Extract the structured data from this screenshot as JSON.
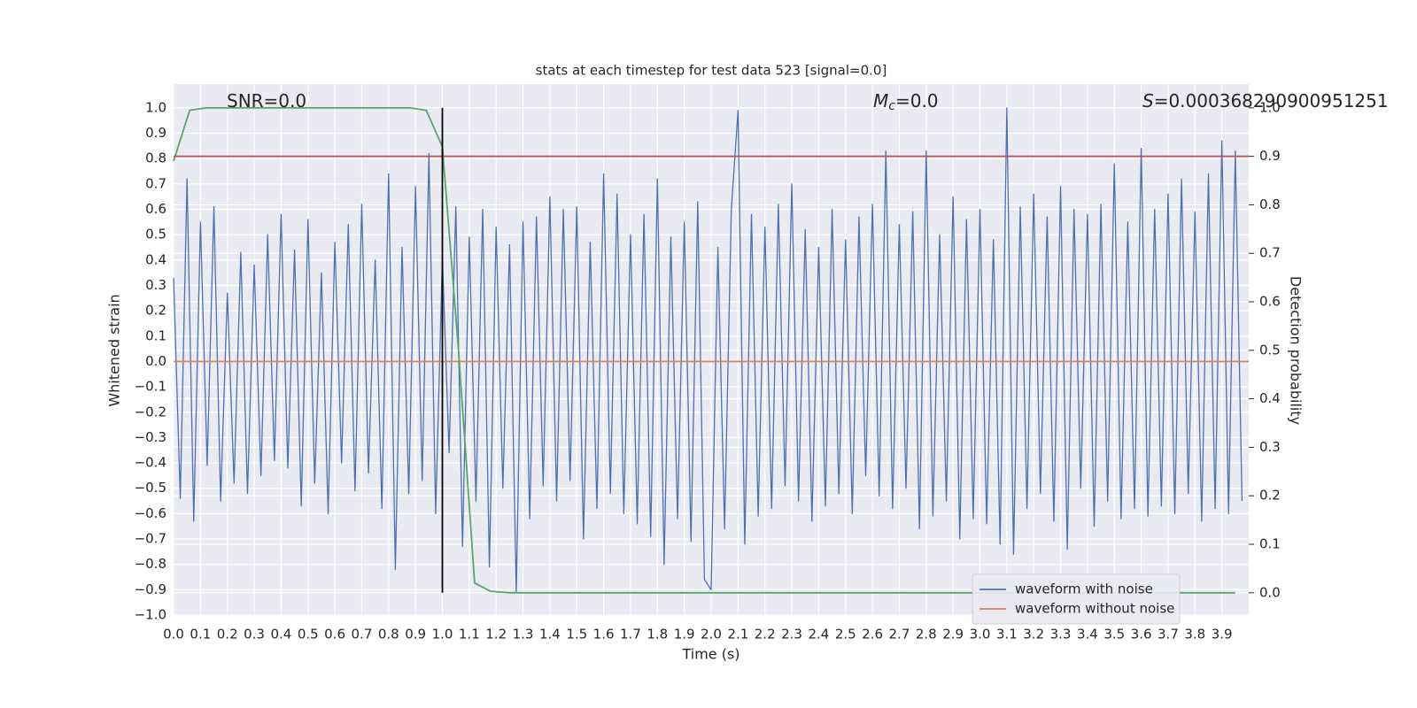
{
  "chart_data": {
    "type": "line",
    "title": "stats at each timestep for test data 523 [signal=0.0]",
    "x_label": "Time (s)",
    "y_label": "Whitened strain",
    "y2_label": "Detection probability",
    "xlim": [
      0,
      4.0
    ],
    "ylim": [
      -1.0,
      1.094
    ],
    "y2lim": [
      -0.046,
      1.049
    ],
    "xticks": [
      {
        "value": 0,
        "label": "0.0"
      },
      0.1,
      0.2,
      0.3,
      0.4,
      0.5,
      0.6,
      0.7,
      0.8,
      0.9,
      {
        "value": 1,
        "label": "1.0"
      },
      1.1,
      1.2,
      1.3,
      1.4,
      1.5,
      1.6,
      1.7,
      1.8,
      1.9,
      {
        "value": 2,
        "label": "2.0"
      },
      2.1,
      2.2,
      2.3,
      2.4,
      2.5,
      2.6,
      2.7,
      2.8,
      2.9,
      {
        "value": 3,
        "label": "3.0"
      },
      3.1,
      3.2,
      3.3,
      3.4,
      3.5,
      3.6,
      3.7,
      3.8,
      3.9
    ],
    "yticks": [
      {
        "value": -1,
        "label": "−1.0"
      },
      {
        "value": -0.9,
        "label": "−0.9"
      },
      {
        "value": -0.8,
        "label": "−0.8"
      },
      {
        "value": -0.7,
        "label": "−0.7"
      },
      {
        "value": -0.6,
        "label": "−0.6"
      },
      {
        "value": -0.5,
        "label": "−0.5"
      },
      {
        "value": -0.4,
        "label": "−0.4"
      },
      {
        "value": -0.3,
        "label": "−0.3"
      },
      {
        "value": -0.2,
        "label": "−0.2"
      },
      {
        "value": -0.1,
        "label": "−0.1"
      },
      {
        "value": 0,
        "label": "0.0"
      },
      0.1,
      0.2,
      0.3,
      0.4,
      0.5,
      0.6,
      0.7,
      0.8,
      0.9,
      {
        "value": 1,
        "label": "1.0"
      }
    ],
    "y2ticks": [
      {
        "value": 0,
        "label": "0.0"
      },
      0.1,
      0.2,
      0.3,
      0.4,
      0.5,
      0.6,
      0.7,
      0.8,
      0.9,
      {
        "value": 1,
        "label": "1.0"
      }
    ],
    "grid": true,
    "legend": "lower right",
    "annotations": [
      {
        "text": "SNR=0.0"
      },
      {
        "symbol": "M",
        "subscript": "c",
        "text": "=0.0"
      },
      {
        "symbol": "S",
        "text": "=0.000368290900951251"
      }
    ],
    "series": [
      {
        "name": "waveform with noise",
        "color": "#4c72b0",
        "x": [
          0,
          0.025,
          0.05,
          0.075,
          0.1,
          0.125,
          0.15,
          0.175,
          0.2,
          0.225,
          0.25,
          0.275,
          0.3,
          0.325,
          0.35,
          0.375,
          0.4,
          0.425,
          0.45,
          0.475,
          0.5,
          0.525,
          0.55,
          0.575,
          0.6,
          0.625,
          0.65,
          0.675,
          0.7,
          0.725,
          0.75,
          0.775,
          0.8,
          0.825,
          0.85,
          0.875,
          0.9,
          0.925,
          0.95,
          0.975,
          1.0,
          1.025,
          1.05,
          1.075,
          1.1,
          1.125,
          1.15,
          1.175,
          1.2,
          1.225,
          1.25,
          1.275,
          1.3,
          1.325,
          1.35,
          1.375,
          1.4,
          1.425,
          1.45,
          1.475,
          1.5,
          1.525,
          1.55,
          1.575,
          1.6,
          1.625,
          1.65,
          1.675,
          1.7,
          1.725,
          1.75,
          1.775,
          1.8,
          1.825,
          1.85,
          1.875,
          1.9,
          1.925,
          1.95,
          1.975,
          2.0,
          2.025,
          2.05,
          2.075,
          2.1,
          2.125,
          2.15,
          2.175,
          2.2,
          2.225,
          2.25,
          2.275,
          2.3,
          2.325,
          2.35,
          2.375,
          2.4,
          2.425,
          2.45,
          2.475,
          2.5,
          2.525,
          2.55,
          2.575,
          2.6,
          2.625,
          2.65,
          2.675,
          2.7,
          2.725,
          2.75,
          2.775,
          2.8,
          2.825,
          2.85,
          2.875,
          2.9,
          2.925,
          2.95,
          2.975,
          3.0,
          3.025,
          3.05,
          3.075,
          3.1,
          3.125,
          3.15,
          3.175,
          3.2,
          3.225,
          3.25,
          3.275,
          3.3,
          3.325,
          3.35,
          3.375,
          3.4,
          3.425,
          3.45,
          3.475,
          3.5,
          3.525,
          3.55,
          3.575,
          3.6,
          3.625,
          3.65,
          3.675,
          3.7,
          3.725,
          3.75,
          3.775,
          3.8,
          3.825,
          3.85,
          3.875,
          3.9,
          3.925,
          3.95,
          3.975
        ],
        "values": [
          0.33,
          -0.54,
          0.72,
          -0.63,
          0.55,
          -0.41,
          0.61,
          -0.55,
          0.27,
          -0.48,
          0.43,
          -0.52,
          0.38,
          -0.45,
          0.5,
          -0.39,
          0.58,
          -0.42,
          0.44,
          -0.57,
          0.56,
          -0.48,
          0.35,
          -0.6,
          0.47,
          -0.4,
          0.54,
          -0.51,
          0.62,
          -0.44,
          0.4,
          -0.58,
          0.74,
          -0.82,
          0.45,
          -0.52,
          0.69,
          -0.47,
          0.82,
          -0.6,
          0.41,
          -0.36,
          0.61,
          -0.73,
          0.49,
          -0.55,
          0.6,
          -0.81,
          0.53,
          -0.5,
          0.46,
          -0.91,
          0.55,
          -0.62,
          0.57,
          -0.49,
          0.65,
          -0.55,
          0.6,
          -0.47,
          0.61,
          -0.7,
          0.47,
          -0.58,
          0.74,
          -0.52,
          0.66,
          -0.6,
          0.5,
          -0.64,
          0.58,
          -0.69,
          0.72,
          -0.8,
          0.49,
          -0.62,
          0.55,
          -0.71,
          0.63,
          -0.86,
          -0.9,
          0.45,
          -0.66,
          0.6,
          0.99,
          -0.72,
          0.58,
          -0.61,
          0.53,
          -0.58,
          0.62,
          -0.49,
          0.7,
          -0.55,
          0.52,
          -0.63,
          0.45,
          -0.57,
          0.6,
          -0.52,
          0.48,
          -0.6,
          0.57,
          -0.45,
          0.62,
          -0.53,
          0.83,
          -0.58,
          0.54,
          -0.5,
          0.59,
          -0.66,
          0.83,
          -0.61,
          0.5,
          -0.55,
          0.65,
          -0.7,
          0.56,
          -0.62,
          0.6,
          -0.64,
          0.48,
          -0.72,
          1.0,
          -0.76,
          0.61,
          -0.58,
          0.66,
          -0.52,
          0.57,
          -0.63,
          0.69,
          -0.74,
          0.6,
          -0.5,
          0.58,
          -0.65,
          0.62,
          -0.55,
          0.78,
          -0.62,
          0.55,
          -0.58,
          0.84,
          -0.61,
          0.6,
          -0.57,
          0.66,
          -0.6,
          0.72,
          -0.52,
          0.59,
          -0.63,
          0.74,
          -0.58,
          0.87,
          -0.6,
          0.83,
          -0.55
        ]
      },
      {
        "name": "waveform without noise",
        "color": "#dd8452",
        "x": [
          0,
          4.0
        ],
        "values": [
          0,
          0
        ]
      },
      {
        "color": "#55a868",
        "axis": "y2",
        "x": [
          0,
          0.06,
          0.12,
          0.88,
          0.94,
          1.0,
          1.06,
          1.12,
          1.18,
          1.25,
          3.95
        ],
        "values": [
          0.89,
          0.995,
          1.0,
          1.0,
          0.995,
          0.92,
          0.5,
          0.02,
          0.003,
          0.0,
          0.0
        ]
      },
      {
        "color": "#c44e52",
        "axis": "y2",
        "x": [
          0,
          4.0
        ],
        "values": [
          0.9,
          0.9
        ]
      }
    ],
    "vlines": [
      {
        "x": 1.0,
        "y2min": 0.0,
        "y2max": 1.0,
        "color": "#000000"
      }
    ]
  }
}
